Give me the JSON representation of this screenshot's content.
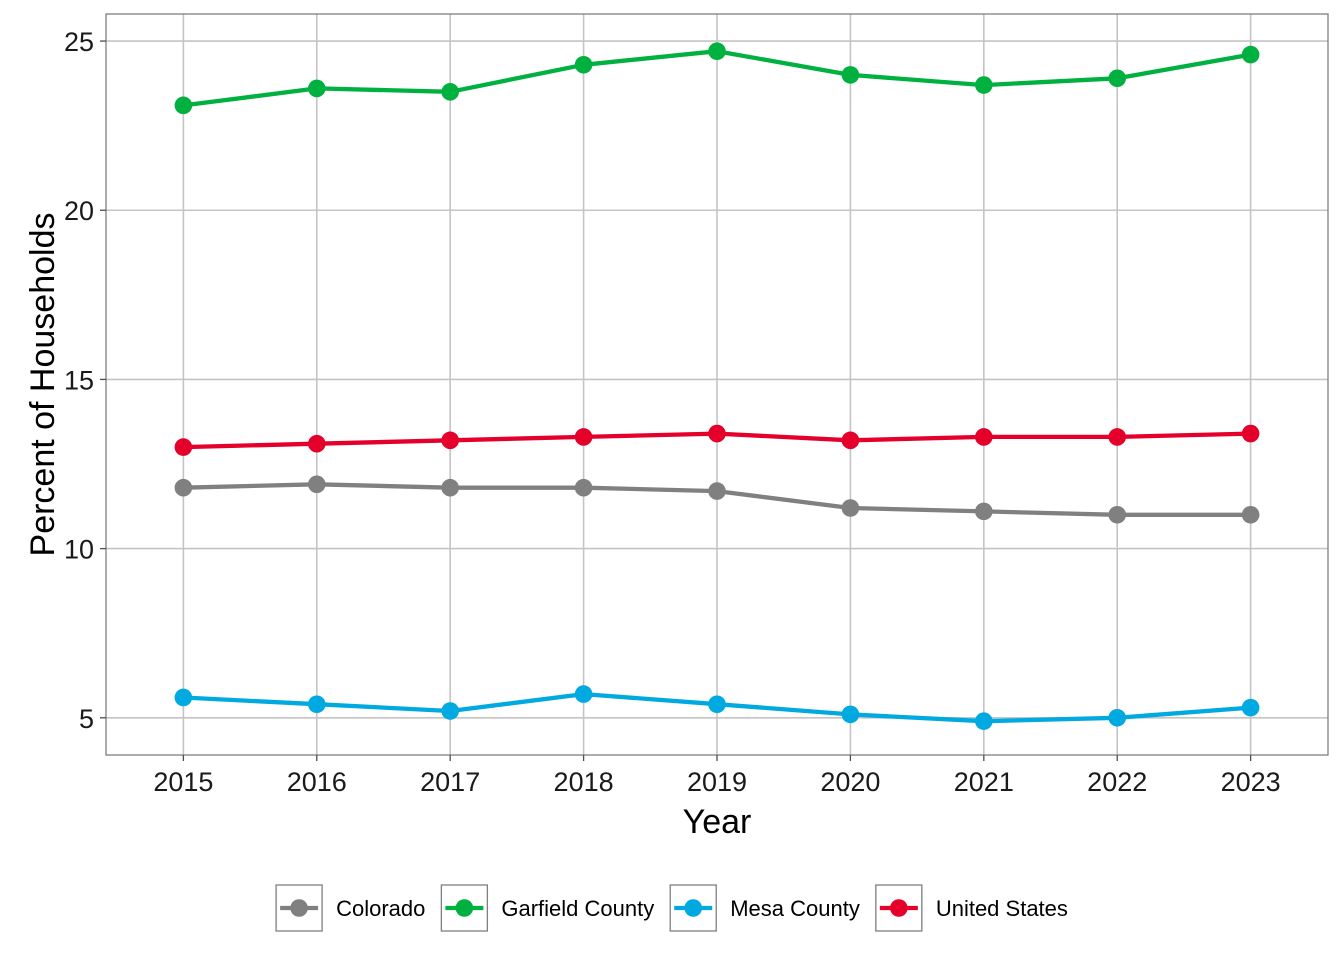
{
  "chart_data": {
    "type": "line",
    "title": "",
    "xlabel": "Year",
    "ylabel": "Percent of Households",
    "x": [
      2015,
      2016,
      2017,
      2018,
      2019,
      2020,
      2021,
      2022,
      2023
    ],
    "x_tick_labels": [
      "2015",
      "2016",
      "2017",
      "2018",
      "2019",
      "2020",
      "2021",
      "2022",
      "2023"
    ],
    "xlim": [
      2014.42,
      2023.58
    ],
    "ylim": [
      3.9,
      25.8
    ],
    "y_ticks": [
      5,
      10,
      15,
      20,
      25
    ],
    "y_tick_labels": [
      "5",
      "10",
      "15",
      "20",
      "25"
    ],
    "grid": true,
    "legend_position": "bottom",
    "series": [
      {
        "name": "Colorado",
        "color": "#808080",
        "values": [
          11.8,
          11.9,
          11.8,
          11.8,
          11.7,
          11.2,
          11.1,
          11.0,
          11.0
        ]
      },
      {
        "name": "Garfield County",
        "color": "#00b140",
        "values": [
          23.1,
          23.6,
          23.5,
          24.3,
          24.7,
          24.0,
          23.7,
          23.9,
          24.6
        ]
      },
      {
        "name": "Mesa County",
        "color": "#00a9e0",
        "values": [
          5.6,
          5.4,
          5.2,
          5.7,
          5.4,
          5.1,
          4.9,
          5.0,
          5.3
        ]
      },
      {
        "name": "United States",
        "color": "#e4002b",
        "values": [
          13.0,
          13.1,
          13.2,
          13.3,
          13.4,
          13.2,
          13.3,
          13.3,
          13.4
        ]
      }
    ]
  }
}
